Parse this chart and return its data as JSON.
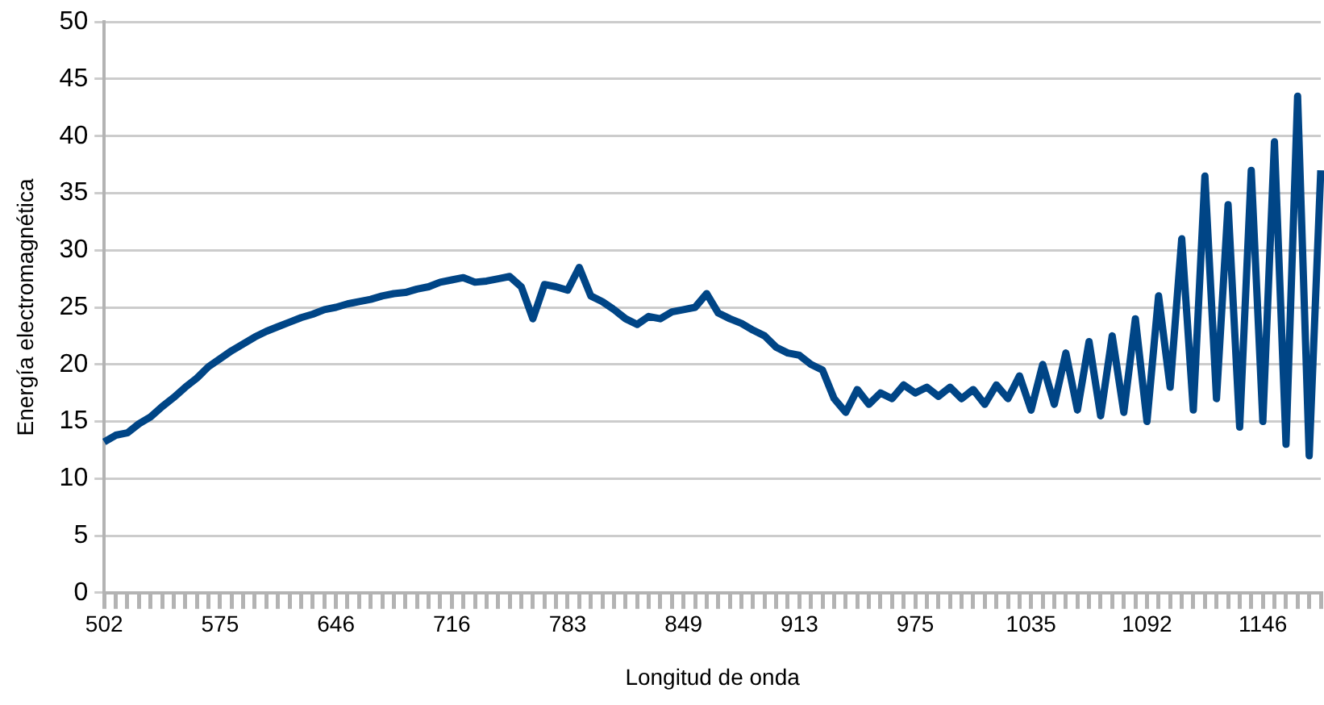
{
  "chart_data": {
    "type": "line",
    "xlabel": "Longitud de onda",
    "ylabel": "Energía electromagnética",
    "categories": [
      "502",
      null,
      null,
      null,
      null,
      null,
      null,
      null,
      null,
      null,
      "575",
      null,
      null,
      null,
      null,
      null,
      null,
      null,
      null,
      null,
      "646",
      null,
      null,
      null,
      null,
      null,
      null,
      null,
      null,
      null,
      "716",
      null,
      null,
      null,
      null,
      null,
      null,
      null,
      null,
      null,
      "783",
      null,
      null,
      null,
      null,
      null,
      null,
      null,
      null,
      null,
      "849",
      null,
      null,
      null,
      null,
      null,
      null,
      null,
      null,
      null,
      "913",
      null,
      null,
      null,
      null,
      null,
      null,
      null,
      null,
      null,
      "975",
      null,
      null,
      null,
      null,
      null,
      null,
      null,
      null,
      null,
      "1035",
      null,
      null,
      null,
      null,
      null,
      null,
      null,
      null,
      null,
      "1092",
      null,
      null,
      null,
      null,
      null,
      null,
      null,
      null,
      null,
      "1146",
      null,
      null,
      null,
      null,
      null
    ],
    "series": [
      {
        "color": "#004586",
        "values": [
          13.2,
          13.8,
          14.0,
          14.8,
          15.4,
          16.3,
          17.1,
          18.0,
          18.8,
          19.8,
          20.5,
          21.2,
          21.8,
          22.4,
          22.9,
          23.3,
          23.7,
          24.1,
          24.4,
          24.8,
          25.0,
          25.3,
          25.5,
          25.7,
          26.0,
          26.2,
          26.3,
          26.6,
          26.8,
          27.2,
          27.4,
          27.6,
          27.2,
          27.3,
          27.5,
          27.7,
          26.8,
          24.0,
          27.0,
          26.8,
          26.5,
          28.5,
          26.0,
          25.5,
          24.8,
          24.0,
          23.5,
          24.2,
          24.0,
          24.6,
          24.8,
          25.0,
          26.2,
          24.5,
          24.0,
          23.6,
          23.0,
          22.5,
          21.5,
          21.0,
          20.8,
          20.0,
          19.5,
          17.0,
          15.8,
          17.8,
          16.5,
          17.5,
          17.0,
          18.2,
          17.5,
          18.0,
          17.2,
          18.0,
          17.0,
          17.8,
          16.5,
          18.2,
          17.0,
          19.0,
          16.0,
          20.0,
          16.5,
          21.0,
          16.0,
          22.0,
          15.5,
          22.5,
          15.8,
          24.0,
          15.0,
          26.0,
          18.0,
          31.0,
          16.0,
          36.5,
          17.0,
          34.0,
          14.5,
          37.0,
          15.0,
          39.5,
          13.0,
          43.5,
          12.0,
          37.0
        ]
      }
    ],
    "ylim": [
      0,
      50
    ],
    "yticks": [
      0,
      5,
      10,
      15,
      20,
      25,
      30,
      35,
      40,
      45,
      50
    ],
    "grid": "y",
    "legend": false,
    "marker": "none",
    "line_style": "solid"
  }
}
